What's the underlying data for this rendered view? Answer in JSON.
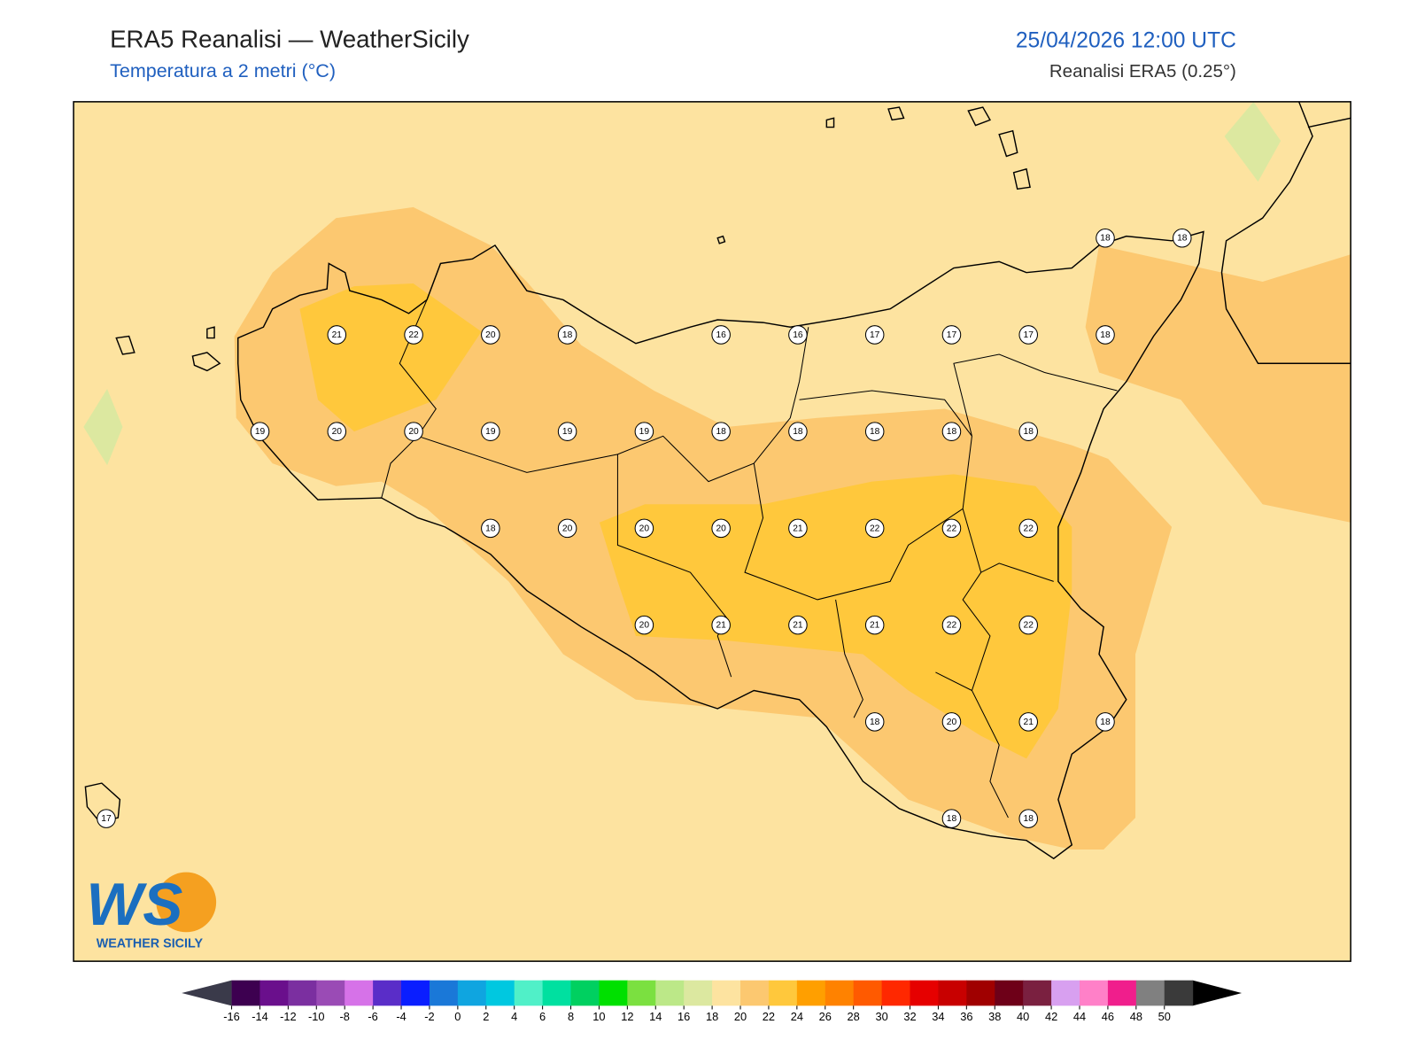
{
  "header": {
    "title": "ERA5 Reanalisi — WeatherSicily",
    "subtitle": "Temperatura a 2 metri (°C)",
    "datetime": "25/04/2026 12:00 UTC",
    "source": "Reanalisi ERA5 (0.25°)"
  },
  "stations": [
    [
      null,
      null,
      null,
      null,
      null,
      null,
      null,
      null,
      null,
      null,
      null,
      null,
      null,
      18,
      18
    ],
    [
      null,
      null,
      null,
      21,
      22,
      20,
      18,
      null,
      16,
      16,
      17,
      17,
      17,
      18,
      null
    ],
    [
      null,
      null,
      19,
      20,
      20,
      19,
      19,
      19,
      18,
      18,
      18,
      18,
      18,
      null,
      null
    ],
    [
      null,
      null,
      null,
      null,
      null,
      18,
      20,
      20,
      20,
      21,
      22,
      22,
      22,
      null,
      null
    ],
    [
      null,
      null,
      null,
      null,
      null,
      null,
      null,
      20,
      21,
      21,
      21,
      22,
      22,
      null,
      null
    ],
    [
      null,
      null,
      null,
      null,
      null,
      null,
      null,
      null,
      null,
      null,
      18,
      20,
      21,
      18,
      null
    ],
    [
      17,
      null,
      null,
      null,
      null,
      null,
      null,
      null,
      null,
      null,
      null,
      18,
      18,
      null,
      null
    ]
  ],
  "colorbar": {
    "ticks": [
      -16,
      -14,
      -12,
      -10,
      -8,
      -6,
      -4,
      -2,
      0,
      2,
      4,
      6,
      8,
      10,
      12,
      14,
      16,
      18,
      20,
      22,
      24,
      26,
      28,
      30,
      32,
      34,
      36,
      38,
      40,
      42,
      44,
      46,
      48,
      50
    ],
    "colors": [
      "#3d0050",
      "#6a0f8c",
      "#7b2fa0",
      "#9a4bb5",
      "#d672e8",
      "#5a2dc8",
      "#0a1eff",
      "#1a78d8",
      "#0fa5e0",
      "#00c8e0",
      "#50f0c8",
      "#00e0a0",
      "#00d060",
      "#00e000",
      "#7be040",
      "#bce888",
      "#dce8a0",
      "#fde3a0",
      "#fcc870",
      "#ffc83c",
      "#ff9f00",
      "#ff8200",
      "#ff5a00",
      "#ff2800",
      "#e60000",
      "#c80000",
      "#a00000",
      "#6e0018",
      "#7a2040",
      "#d8a0f0",
      "#ff80c8",
      "#f01e8c",
      "#808080",
      "#3a3a3a"
    ],
    "under_color": "#3a3a4a",
    "over_color": "#000000"
  },
  "logo": {
    "mark": "WS",
    "text": "WEATHER SICILY"
  }
}
